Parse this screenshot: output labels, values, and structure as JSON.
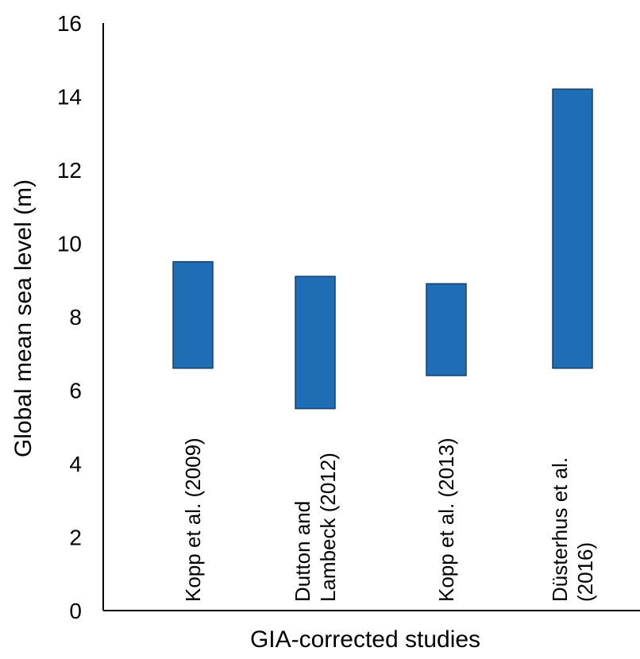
{
  "chart_data": {
    "type": "bar",
    "subtype": "floating-range",
    "title": "",
    "xlabel": "GIA-corrected studies",
    "ylabel": "Global mean sea level (m)",
    "ylim": [
      0,
      16
    ],
    "yticks": [
      0,
      2,
      4,
      6,
      8,
      10,
      12,
      14,
      16
    ],
    "grid": false,
    "legend": "none",
    "bar_color": "#1f6db5",
    "bar_edge_color": "#163f6a",
    "categories": [
      "Kopp et al. (2009)",
      "Dutton and Lambeck (2012)",
      "Kopp et al. (2013)",
      "Düsterhus et al. (2016)"
    ],
    "category_label_lines": [
      [
        "Kopp et al. (2009)"
      ],
      [
        "Dutton and",
        "Lambeck (2012)"
      ],
      [
        "Kopp et al. (2013)"
      ],
      [
        "Düsterhus et al.",
        "(2016)"
      ]
    ],
    "ranges": [
      {
        "low": 6.6,
        "high": 9.5
      },
      {
        "low": 5.5,
        "high": 9.1
      },
      {
        "low": 6.4,
        "high": 8.9
      },
      {
        "low": 6.6,
        "high": 14.2
      }
    ]
  }
}
